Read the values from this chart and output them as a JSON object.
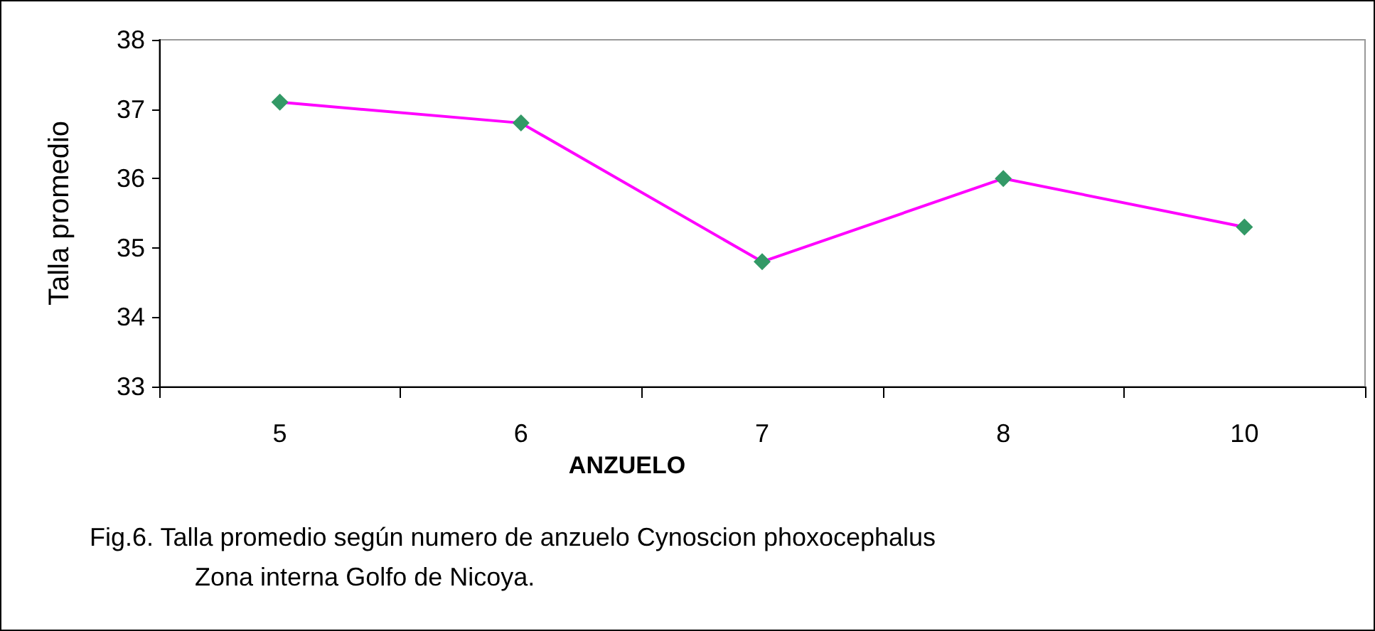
{
  "chart_data": {
    "type": "line",
    "ylabel": "Talla promedio",
    "xlabel": "ANZUELO",
    "categories": [
      "5",
      "6",
      "7",
      "8",
      "10"
    ],
    "series": [
      {
        "color": "#ff00ff",
        "colors": [
          "#339966",
          "#339966",
          "#339966",
          "#339966",
          "#339966"
        ],
        "values": [
          37.1,
          36.8,
          34.8,
          36.0,
          35.3
        ]
      }
    ],
    "marker": "diamond",
    "line_style": "solid",
    "ylim": [
      33,
      38
    ],
    "yticks": [
      33,
      34,
      35,
      36,
      37,
      38
    ],
    "grid": false,
    "annotations": [
      "Fig.6. Talla promedio según numero de anzuelo Cynoscion phoxocephalus",
      "Zona interna Golfo de Nicoya."
    ]
  }
}
